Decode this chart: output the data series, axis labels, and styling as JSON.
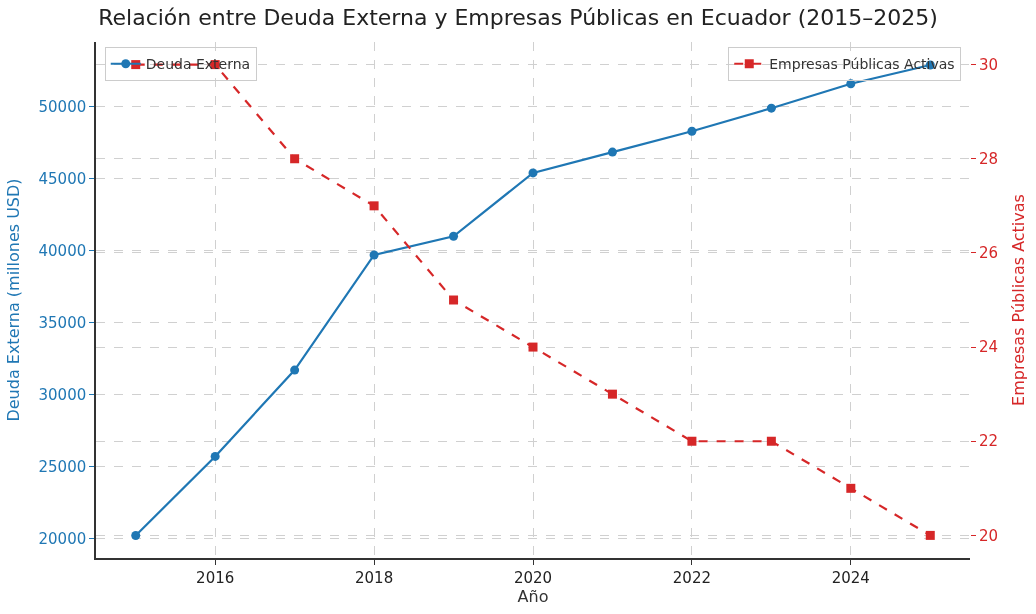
{
  "chart_data": {
    "type": "line",
    "title": "Relación entre Deuda Externa y Empresas Públicas en Ecuador (2015–2025)",
    "xlabel": "Año",
    "ylabel": "Deuda Externa (millones USD)",
    "y2label": "Empresas Públicas Activas",
    "x": [
      2015,
      2016,
      2017,
      2018,
      2019,
      2020,
      2021,
      2022,
      2023,
      2024,
      2025
    ],
    "series": [
      {
        "name": "Deuda Externa",
        "color": "#1f77b4",
        "marker": "circle",
        "line_style": "solid",
        "values": [
          20200,
          25700,
          31700,
          39700,
          41000,
          45400,
          46850,
          48300,
          49900,
          51600,
          52900
        ]
      },
      {
        "name": "Empresas Públicas Activas",
        "color": "#d62728",
        "marker": "square",
        "line_style": "dashed",
        "axis": "y2",
        "values": [
          30,
          30,
          28,
          27,
          25,
          24,
          23,
          22,
          22,
          21,
          20
        ]
      }
    ],
    "xlim": [
      2014.5,
      2025.5
    ],
    "xticks": [
      2016,
      2018,
      2020,
      2022,
      2024
    ],
    "ylim": [
      18640,
      54500
    ],
    "yticks": [
      20000,
      25000,
      30000,
      35000,
      40000,
      45000,
      50000
    ],
    "y2lim": [
      19.52,
      30.48
    ],
    "y2ticks": [
      20,
      22,
      24,
      26,
      28,
      30
    ],
    "grid": true,
    "legend": "top left"
  }
}
